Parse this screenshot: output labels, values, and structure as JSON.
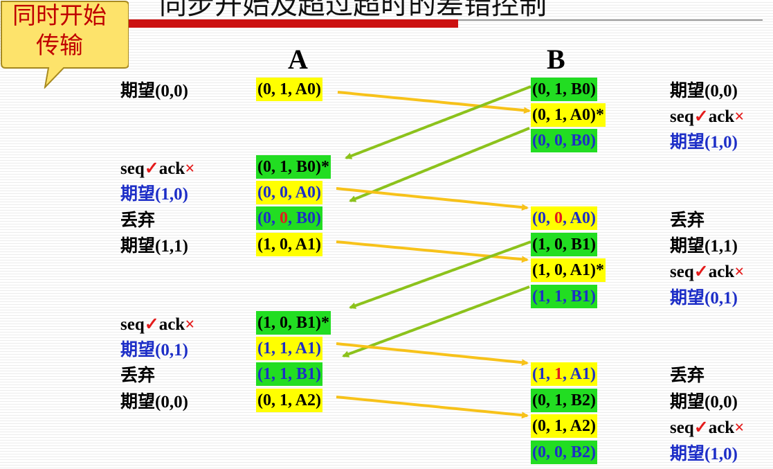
{
  "title": "同步开始及超过超时的差错控制",
  "callout": {
    "line1": "同时开始",
    "line2": "传输"
  },
  "headers": {
    "a": "A",
    "b": "B"
  },
  "left_labels": [
    {
      "text": "期望(0,0)",
      "color": "black"
    },
    {
      "seq": "seq",
      "ok": "✓",
      "ack": "ack",
      "x": "×"
    },
    {
      "text": "期望(1,0)",
      "color": "blue"
    },
    {
      "text": "丢弃",
      "color": "black"
    },
    {
      "text": "期望(1,1)",
      "color": "black"
    },
    {
      "seq": "seq",
      "ok": "✓",
      "ack": "ack",
      "x": "×"
    },
    {
      "text": "期望(0,1)",
      "color": "blue"
    },
    {
      "text": "丢弃",
      "color": "black"
    },
    {
      "text": "期望(0,0)",
      "color": "black"
    }
  ],
  "right_labels": [
    {
      "text": "期望(0,0)",
      "color": "black"
    },
    {
      "seq": "seq",
      "ok": "✓",
      "ack": "ack",
      "x": "×"
    },
    {
      "text": "期望(1,0)",
      "color": "blue"
    },
    {
      "text": "丢弃",
      "color": "black"
    },
    {
      "text": "期望(1,1)",
      "color": "black"
    },
    {
      "seq": "seq",
      "ok": "✓",
      "ack": "ack",
      "x": "×"
    },
    {
      "text": "期望(0,1)",
      "color": "blue"
    },
    {
      "text": "丢弃",
      "color": "black"
    },
    {
      "text": "期望(0,0)",
      "color": "black"
    },
    {
      "seq": "seq",
      "ok": "✓",
      "ack": "ack",
      "x": "×"
    },
    {
      "text": "期望(1,0)",
      "color": "blue"
    }
  ],
  "a_packets": [
    {
      "pre": "(0, 1, A0)",
      "bg": "yellow",
      "color": "black"
    },
    {
      "pre": "(0, 1, B0)",
      "star": "*",
      "bg": "green",
      "color": "black"
    },
    {
      "pre": "(0, 0, A0)",
      "bg": "yellow",
      "color": "blue"
    },
    {
      "pre": "(0, ",
      "red": "0",
      "post": ", B0)",
      "bg": "green",
      "color": "blue"
    },
    {
      "pre": "(1, 0, A1)",
      "bg": "yellow",
      "color": "black"
    },
    {
      "pre": "(1, 0, B1)",
      "star": "*",
      "bg": "green",
      "color": "black"
    },
    {
      "pre": "(1, 1, A1)",
      "bg": "yellow",
      "color": "blue"
    },
    {
      "pre": "(1, 1, B1)",
      "bg": "green",
      "color": "blue"
    },
    {
      "pre": "(0, 1, A2)",
      "bg": "yellow",
      "color": "black"
    }
  ],
  "b_packets": [
    {
      "pre": "(0, 1, B0)",
      "bg": "green",
      "color": "black"
    },
    {
      "pre": "(0, 1, A0)",
      "star": "*",
      "bg": "yellow",
      "color": "black"
    },
    {
      "pre": "(0, 0, B0)",
      "bg": "green",
      "color": "blue"
    },
    {
      "pre": "(0, ",
      "red": "0",
      "post": ", A0)",
      "bg": "yellow",
      "color": "blue"
    },
    {
      "pre": "(1, 0, B1)",
      "bg": "green",
      "color": "black"
    },
    {
      "pre": "(1, 0, A1)",
      "star": "*",
      "bg": "yellow",
      "color": "black"
    },
    {
      "pre": "(1, 1, B1)",
      "bg": "green",
      "color": "blue"
    },
    {
      "pre": "(1, ",
      "red": "1",
      "post": ", A1)",
      "bg": "yellow",
      "color": "blue"
    },
    {
      "pre": "(0, 1, B2)",
      "bg": "green",
      "color": "black"
    },
    {
      "pre": "(0, 1, A2)",
      "bg": "yellow",
      "color": "black"
    },
    {
      "pre": "(0, 0, B2)",
      "bg": "green",
      "color": "blue"
    }
  ],
  "colors": {
    "yellow_arrow": "#f7c21a",
    "green_arrow": "#8cc21c",
    "packet_yellow": "#ffff00",
    "packet_green": "#22dd22",
    "blue_text": "#1d2ec7",
    "red_text": "#e41b1b",
    "callout_bg": "#fde36b"
  }
}
